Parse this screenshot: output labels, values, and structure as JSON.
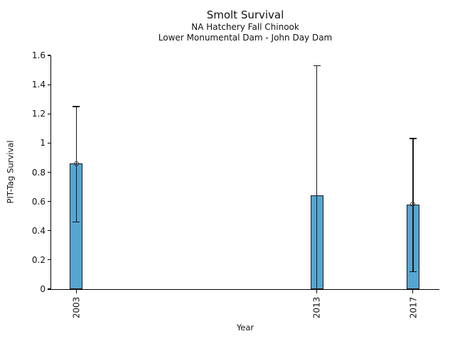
{
  "chart_data": {
    "type": "bar",
    "title": "Smolt Survival",
    "subtitle": [
      "NA Hatchery Fall Chinook",
      "Lower Monumental Dam - John Day Dam"
    ],
    "xlabel": "Year",
    "ylabel": "PIT-Tag Survival",
    "categories": [
      "2003",
      "2013",
      "2017"
    ],
    "x_values": [
      2003,
      2013,
      2017
    ],
    "values": [
      0.86,
      0.64,
      0.58
    ],
    "error_low": [
      0.46,
      0.0,
      0.12
    ],
    "error_high": [
      1.25,
      1.53,
      1.03
    ],
    "point_markers": [
      true,
      false,
      true
    ],
    "ylim": [
      0,
      1.6
    ],
    "yticks": [
      0,
      0.2,
      0.4,
      0.6,
      0.8,
      1,
      1.2,
      1.4,
      1.6
    ],
    "ytick_labels": [
      "0",
      "0.2",
      "0.4",
      "0.6",
      "0.8",
      "1",
      "1.2",
      "1.4",
      "1.6"
    ],
    "xlim": [
      2001.95,
      2018.1
    ],
    "grid": false,
    "legend": null,
    "bar_color": "#56a5d2",
    "bar_edge_color": "#1a1a1a",
    "error_color": "#1a1a1a",
    "marker_edge_color": "#3c3c3c"
  }
}
